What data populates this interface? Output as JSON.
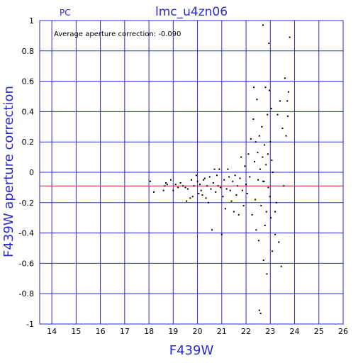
{
  "chart_data": {
    "type": "scatter",
    "title": "lmc_u4zn06",
    "corner_label": "PC",
    "annotation": "Average aperture correction: -0.090",
    "xlabel": "F439W",
    "ylabel": "F439W aperture correction",
    "xlim": [
      13.5,
      26
    ],
    "ylim": [
      -1,
      1
    ],
    "xticks": [
      "14",
      "15",
      "16",
      "17",
      "18",
      "19",
      "20",
      "21",
      "22",
      "23",
      "24",
      "25",
      "26"
    ],
    "yticks": [
      "1",
      "0.8",
      "0.6",
      "0.4",
      "0.2",
      "0",
      "-0.2",
      "-0.4",
      "-0.6",
      "-0.8",
      "-1"
    ],
    "grid": true,
    "reference_line": {
      "y": -0.09,
      "color": "#cc2222"
    },
    "colors": {
      "axis": "#2a2acc",
      "grid": "#2a2acc",
      "points": "#000000",
      "ref": "#cc2222"
    },
    "series": [
      {
        "points": [
          [
            18.05,
            -0.06
          ],
          [
            18.2,
            -0.13
          ],
          [
            18.6,
            -0.12
          ],
          [
            18.65,
            -0.09
          ],
          [
            18.7,
            -0.07
          ],
          [
            18.75,
            -0.08
          ],
          [
            18.9,
            -0.05
          ],
          [
            19.0,
            -0.12
          ],
          [
            19.1,
            -0.08
          ],
          [
            19.2,
            -0.1
          ],
          [
            19.3,
            -0.07
          ],
          [
            19.4,
            -0.09
          ],
          [
            19.5,
            -0.1
          ],
          [
            19.55,
            -0.19
          ],
          [
            19.6,
            -0.11
          ],
          [
            19.7,
            -0.17
          ],
          [
            19.75,
            -0.05
          ],
          [
            19.8,
            -0.16
          ],
          [
            19.85,
            -0.09
          ],
          [
            19.95,
            -0.02
          ],
          [
            20.0,
            -0.06
          ],
          [
            20.05,
            -0.14
          ],
          [
            20.1,
            -0.08
          ],
          [
            20.15,
            -0.12
          ],
          [
            20.2,
            -0.15
          ],
          [
            20.25,
            -0.05
          ],
          [
            20.3,
            -0.04
          ],
          [
            20.35,
            -0.17
          ],
          [
            20.4,
            -0.09
          ],
          [
            20.45,
            -0.2
          ],
          [
            20.5,
            -0.03
          ],
          [
            20.55,
            -0.11
          ],
          [
            20.6,
            -0.38
          ],
          [
            20.65,
            -0.07
          ],
          [
            20.7,
            0.02
          ],
          [
            20.75,
            -0.13
          ],
          [
            20.8,
            -0.02
          ],
          [
            20.85,
            -0.09
          ],
          [
            20.9,
            0.02
          ],
          [
            20.95,
            -0.1
          ],
          [
            21.0,
            -0.41
          ],
          [
            21.05,
            -0.16
          ],
          [
            21.1,
            -0.05
          ],
          [
            21.15,
            -0.24
          ],
          [
            21.2,
            -0.11
          ],
          [
            21.25,
            0.02
          ],
          [
            21.3,
            -0.03
          ],
          [
            21.35,
            -0.12
          ],
          [
            21.4,
            -0.19
          ],
          [
            21.45,
            -0.06
          ],
          [
            21.5,
            -0.26
          ],
          [
            21.55,
            -0.02
          ],
          [
            21.6,
            -0.15
          ],
          [
            21.65,
            -0.09
          ],
          [
            21.7,
            -0.28
          ],
          [
            21.75,
            -0.04
          ],
          [
            21.8,
            0.1
          ],
          [
            21.85,
            -0.12
          ],
          [
            21.9,
            -0.22
          ],
          [
            21.95,
            0.04
          ],
          [
            22.0,
            -0.08
          ],
          [
            22.05,
            -0.14
          ],
          [
            22.1,
            0.12
          ],
          [
            22.15,
            -0.03
          ],
          [
            22.2,
            0.22
          ],
          [
            22.25,
            -0.28
          ],
          [
            22.3,
            0.35
          ],
          [
            22.32,
            0.56
          ],
          [
            22.35,
            0.07
          ],
          [
            22.38,
            -0.18
          ],
          [
            22.4,
            0.2
          ],
          [
            22.42,
            -0.38
          ],
          [
            22.45,
            0.48
          ],
          [
            22.48,
            0.13
          ],
          [
            22.5,
            -0.05
          ],
          [
            22.52,
            -0.45
          ],
          [
            22.55,
            0.24
          ],
          [
            22.58,
            0.02
          ],
          [
            22.6,
            -0.93
          ],
          [
            22.62,
            -0.22
          ],
          [
            22.65,
            0.3
          ],
          [
            22.68,
            0.1
          ],
          [
            22.7,
            0.97
          ],
          [
            22.72,
            -0.58
          ],
          [
            22.74,
            -0.06
          ],
          [
            22.76,
            0.18
          ],
          [
            22.78,
            -0.35
          ],
          [
            22.8,
            0.56
          ],
          [
            22.82,
            0.05
          ],
          [
            22.84,
            -0.26
          ],
          [
            22.86,
            -0.67
          ],
          [
            22.88,
            0.38
          ],
          [
            22.9,
            0.12
          ],
          [
            22.92,
            -0.1
          ],
          [
            22.94,
            0.85
          ],
          [
            22.96,
            0.54
          ],
          [
            22.98,
            -0.16
          ],
          [
            23.0,
            0.2
          ],
          [
            23.02,
            -0.3
          ],
          [
            23.04,
            0.42
          ],
          [
            23.06,
            0.08
          ],
          [
            23.08,
            -0.52
          ],
          [
            23.1,
            0.0
          ],
          [
            23.2,
            -0.26
          ],
          [
            23.3,
            0.38
          ],
          [
            23.35,
            -0.46
          ],
          [
            23.4,
            0.47
          ],
          [
            23.45,
            -0.62
          ],
          [
            23.5,
            0.29
          ],
          [
            23.55,
            -0.09
          ],
          [
            23.6,
            0.62
          ],
          [
            23.7,
            0.47
          ],
          [
            23.75,
            0.53
          ],
          [
            23.8,
            0.89
          ],
          [
            23.65,
            0.24
          ],
          [
            23.72,
            0.37
          ],
          [
            22.55,
            -0.91
          ],
          [
            22.7,
            -0.06
          ],
          [
            23.2,
            -0.41
          ],
          [
            23.25,
            -0.2
          ]
        ]
      }
    ]
  }
}
